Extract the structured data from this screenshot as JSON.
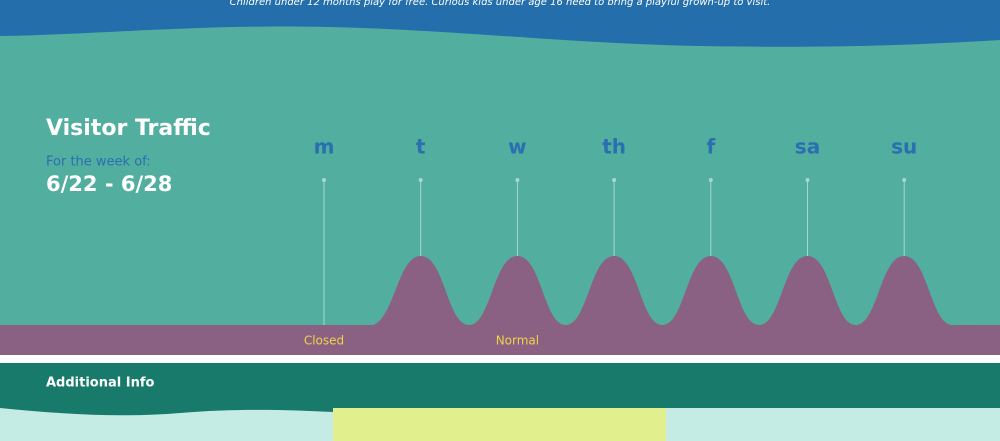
{
  "banner": {
    "text": "Children under 12 months play for free. Curious kids under age 16 need to bring a playful grown-up to visit."
  },
  "traffic": {
    "title": "Visitor Traffic",
    "subtitle": "For the week of:",
    "range": "6/22 - 6/28",
    "days": [
      "m",
      "t",
      "w",
      "th",
      "f",
      "sa",
      "su"
    ],
    "legend": [
      "Closed",
      "Normal"
    ]
  },
  "additional": {
    "title": "Additional Info"
  }
}
